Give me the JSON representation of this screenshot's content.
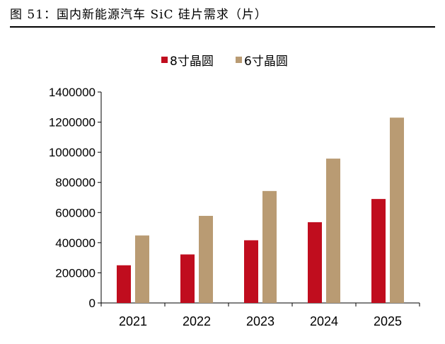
{
  "figure_title": "图 51：国内新能源汽车 SiC 硅片需求（片）",
  "chart_data": {
    "type": "bar",
    "categories": [
      "2021",
      "2022",
      "2023",
      "2024",
      "2025"
    ],
    "series": [
      {
        "name": "8寸晶圆",
        "color": "#c00d1e",
        "values": [
          250000,
          322000,
          416000,
          536000,
          690000
        ]
      },
      {
        "name": "6寸晶圆",
        "color": "#b99b73",
        "values": [
          448000,
          578000,
          743000,
          958000,
          1230000
        ]
      }
    ],
    "ylim": [
      0,
      1400000
    ],
    "yticks": [
      0,
      200000,
      400000,
      600000,
      800000,
      1000000,
      1200000,
      1400000
    ],
    "title": "",
    "xlabel": "",
    "ylabel": "",
    "legend_position": "top-center",
    "grid": false
  }
}
